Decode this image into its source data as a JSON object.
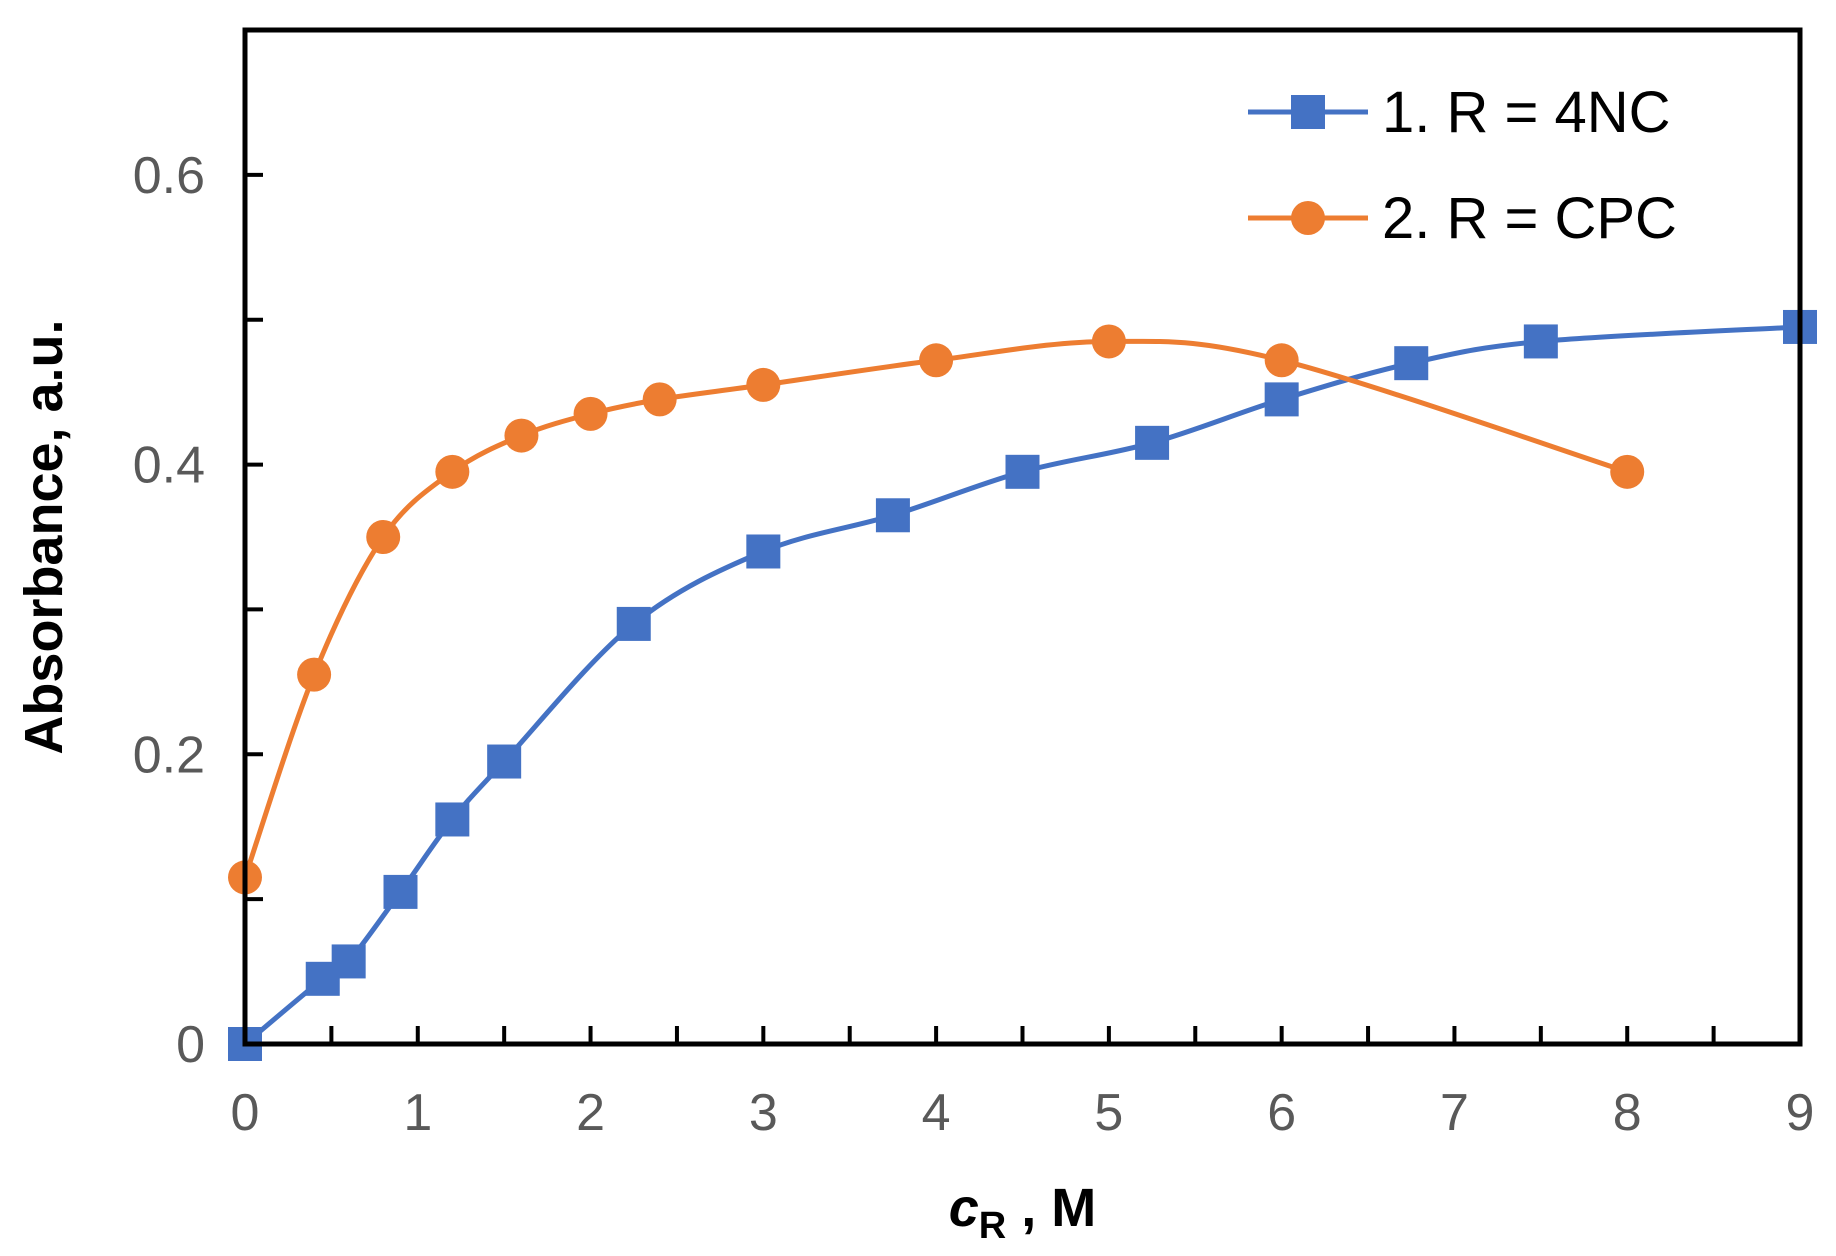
{
  "chart_data": {
    "type": "line",
    "title": "",
    "xlabel_main": "c",
    "xlabel_sub": "R",
    "xlabel_unit": " , M",
    "ylabel": "Absorbance, a.u.",
    "xlim": [
      0,
      9
    ],
    "ylim": [
      0,
      0.7
    ],
    "x_ticks": [
      0,
      1,
      2,
      3,
      4,
      5,
      6,
      7,
      8,
      9
    ],
    "x_tick_labels": [
      "0",
      "1",
      "2",
      "3",
      "4",
      "5",
      "6",
      "7",
      "8",
      "9"
    ],
    "y_ticks": [
      0,
      0.2,
      0.4,
      0.6
    ],
    "y_tick_labels": [
      "0",
      "0.2",
      "0.4",
      "0.6"
    ],
    "grid": false,
    "legend_position": "top-right",
    "series": [
      {
        "name": "1. R = 4NC",
        "color": "#4472C4",
        "marker": "square",
        "x": [
          0,
          0.45,
          0.6,
          0.9,
          1.2,
          1.5,
          2.25,
          3.0,
          3.75,
          4.5,
          5.25,
          6.0,
          6.75,
          7.5,
          9.0
        ],
        "y": [
          0.0,
          0.045,
          0.057,
          0.105,
          0.155,
          0.195,
          0.29,
          0.34,
          0.365,
          0.395,
          0.415,
          0.445,
          0.47,
          0.485,
          0.495
        ]
      },
      {
        "name": "2. R = CPC",
        "color": "#ED7D31",
        "marker": "circle",
        "x": [
          0,
          0.4,
          0.8,
          1.2,
          1.6,
          2.0,
          2.4,
          3.0,
          4.0,
          5.0,
          6.0,
          8.0
        ],
        "y": [
          0.115,
          0.255,
          0.35,
          0.395,
          0.42,
          0.435,
          0.445,
          0.455,
          0.472,
          0.485,
          0.472,
          0.395
        ]
      }
    ]
  }
}
